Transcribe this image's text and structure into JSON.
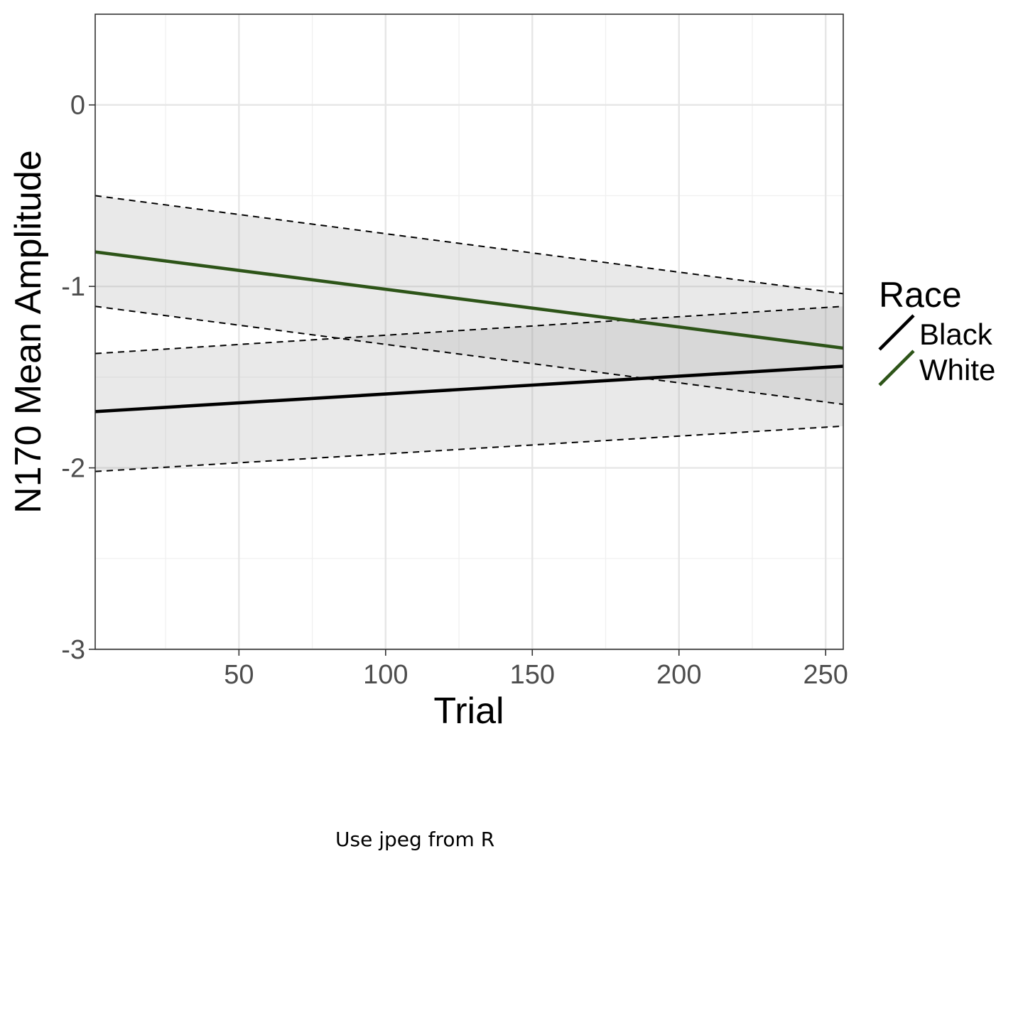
{
  "chart_data": {
    "type": "line",
    "title": "",
    "xlabel": "Trial",
    "ylabel": "N170 Mean Amplitude",
    "xlim": [
      1,
      256
    ],
    "ylim": [
      -3,
      0.5
    ],
    "x_ticks": [
      50,
      100,
      150,
      200,
      250
    ],
    "x_tick_labels": [
      "50",
      "100",
      "150",
      "200",
      "250"
    ],
    "x_minor_ticks": [
      25,
      75,
      125,
      175,
      225
    ],
    "y_ticks": [
      -3,
      -2,
      -1,
      0
    ],
    "y_tick_labels": [
      "-3",
      "-2",
      "-1",
      "0"
    ],
    "y_minor_ticks": [
      -2.5,
      -1.5,
      -0.5
    ],
    "grid": true,
    "legend": {
      "title": "Race",
      "position": "right"
    },
    "series": [
      {
        "name": "Black",
        "color": "#000000",
        "x": [
          1,
          256
        ],
        "y": [
          -1.69,
          -1.44
        ],
        "ci_lower": [
          -2.02,
          -1.77
        ],
        "ci_upper": [
          -1.37,
          -1.11
        ]
      },
      {
        "name": "White",
        "color": "#2d5418",
        "x": [
          1,
          256
        ],
        "y": [
          -0.81,
          -1.34
        ],
        "ci_lower": [
          -1.11,
          -1.65
        ],
        "ci_upper": [
          -0.5,
          -1.04
        ]
      }
    ]
  },
  "caption": "Use jpeg from R"
}
